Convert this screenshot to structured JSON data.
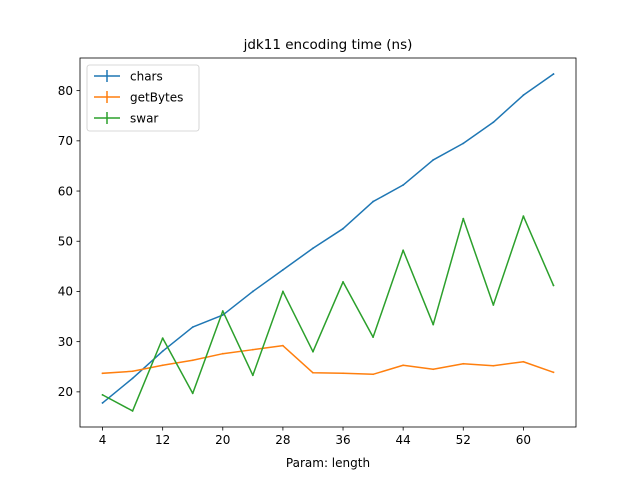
{
  "chart_data": {
    "type": "line",
    "title": "jdk11 encoding time (ns)",
    "xlabel": "Param: length",
    "ylabel": "",
    "x": [
      4,
      8,
      12,
      16,
      20,
      24,
      28,
      32,
      36,
      40,
      44,
      48,
      52,
      56,
      60,
      64
    ],
    "xticks": [
      4,
      12,
      20,
      28,
      36,
      44,
      52,
      60
    ],
    "yticks": [
      20,
      30,
      40,
      50,
      60,
      70,
      80
    ],
    "xlim": [
      1,
      67
    ],
    "ylim": [
      13.0,
      86.5
    ],
    "grid": false,
    "legend_position": "top-left",
    "series": [
      {
        "name": "chars",
        "color": "#1f77b4",
        "values": [
          17.8,
          22.7,
          28.1,
          32.9,
          35.3,
          40.0,
          44.3,
          48.6,
          52.5,
          57.9,
          61.2,
          66.2,
          69.5,
          73.7,
          79.1,
          83.3
        ]
      },
      {
        "name": "getBytes",
        "color": "#ff7f0e",
        "values": [
          23.7,
          24.1,
          25.3,
          26.3,
          27.6,
          28.4,
          29.2,
          23.8,
          23.7,
          23.5,
          25.3,
          24.5,
          25.6,
          25.2,
          26.0,
          23.9
        ]
      },
      {
        "name": "swar",
        "color": "#2ca02c",
        "values": [
          19.4,
          16.2,
          30.7,
          19.7,
          36.1,
          23.3,
          40.0,
          28.0,
          41.9,
          30.9,
          48.2,
          33.4,
          54.5,
          37.3,
          55.0,
          41.2
        ]
      }
    ]
  }
}
